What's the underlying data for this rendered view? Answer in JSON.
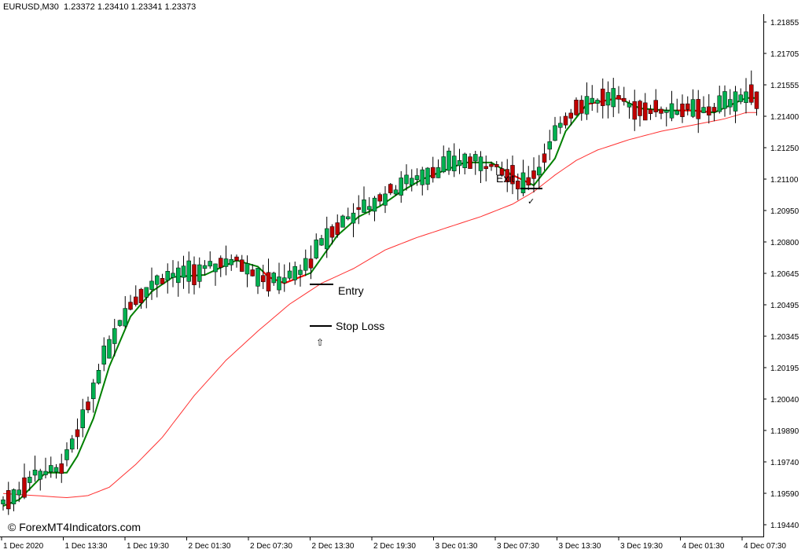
{
  "header": {
    "symbol": "EURUSD,M30",
    "ohlc": "1.23372 1.23410 1.23341 1.23373"
  },
  "watermark": "© ForexMT4Indicators.com",
  "annotations": {
    "entry": "Entry",
    "stop_loss": "Stop Loss",
    "exit": "Exit",
    "buy_arrow": "⇧",
    "exit_mark": "✓"
  },
  "colors": {
    "bull": "#00b050",
    "bear": "#c00000",
    "fast_ma_up": "#008000",
    "fast_ma_down": "#ff0000",
    "slow_ma": "#ff3030",
    "axis": "#000000",
    "background": "#ffffff"
  },
  "chart_data": {
    "type": "candlestick",
    "symbol": "EURUSD",
    "timeframe": "M30",
    "ylim": [
      1.1935,
      1.22
    ],
    "y_ticks": [
      "1.21855",
      "1.21705",
      "1.21555",
      "1.21400",
      "1.21250",
      "1.21100",
      "1.20950",
      "1.20800",
      "1.20645",
      "1.20495",
      "1.20345",
      "1.20195",
      "1.20040",
      "1.19890",
      "1.19740",
      "1.19590",
      "1.19440"
    ],
    "x_ticks": [
      "1 Dec 2020",
      "1 Dec 13:30",
      "1 Dec 19:30",
      "2 Dec 01:30",
      "2 Dec 07:30",
      "2 Dec 13:30",
      "2 Dec 19:30",
      "3 Dec 01:30",
      "3 Dec 07:30",
      "3 Dec 13:30",
      "3 Dec 19:30",
      "4 Dec 01:30",
      "4 Dec 07:30"
    ],
    "ma_anchors": {
      "fast_x": [
        0,
        3,
        8,
        12,
        14,
        17,
        20,
        24,
        28,
        32,
        38,
        44,
        48,
        50,
        53,
        58,
        63,
        67,
        71,
        75,
        79,
        83,
        87,
        92,
        96,
        100,
        104,
        106,
        110,
        116,
        120,
        125,
        130,
        134,
        140
      ],
      "fast_y": [
        1.1953,
        1.1956,
        1.1969,
        1.1969,
        1.1977,
        1.1995,
        1.202,
        1.2044,
        1.2056,
        1.2063,
        1.2064,
        1.2071,
        1.2068,
        1.2063,
        1.206,
        1.2065,
        1.2083,
        1.2092,
        1.2097,
        1.2104,
        1.211,
        1.2114,
        1.2118,
        1.2118,
        1.2112,
        1.2107,
        1.212,
        1.2133,
        1.2146,
        1.2149,
        1.2144,
        1.2143,
        1.2143,
        1.2142,
        1.2149
      ],
      "slow_x": [
        0,
        6,
        12,
        16,
        20,
        25,
        30,
        36,
        42,
        48,
        54,
        60,
        66,
        72,
        78,
        84,
        90,
        96,
        100,
        104,
        108,
        112,
        118,
        124,
        130,
        136,
        140
      ],
      "slow_y": [
        1.1959,
        1.1958,
        1.1957,
        1.1958,
        1.1962,
        1.1973,
        1.1986,
        1.2006,
        1.2023,
        1.2037,
        1.205,
        1.206,
        1.2067,
        1.2076,
        1.2082,
        1.2087,
        1.2092,
        1.2098,
        1.2104,
        1.2112,
        1.2119,
        1.2124,
        1.2129,
        1.2133,
        1.2136,
        1.2139,
        1.2142
      ],
      "fast_red_segments": [
        [
          49,
          57
        ],
        [
          96,
          99
        ],
        [
          110,
          117
        ],
        [
          127,
          133
        ]
      ]
    }
  }
}
